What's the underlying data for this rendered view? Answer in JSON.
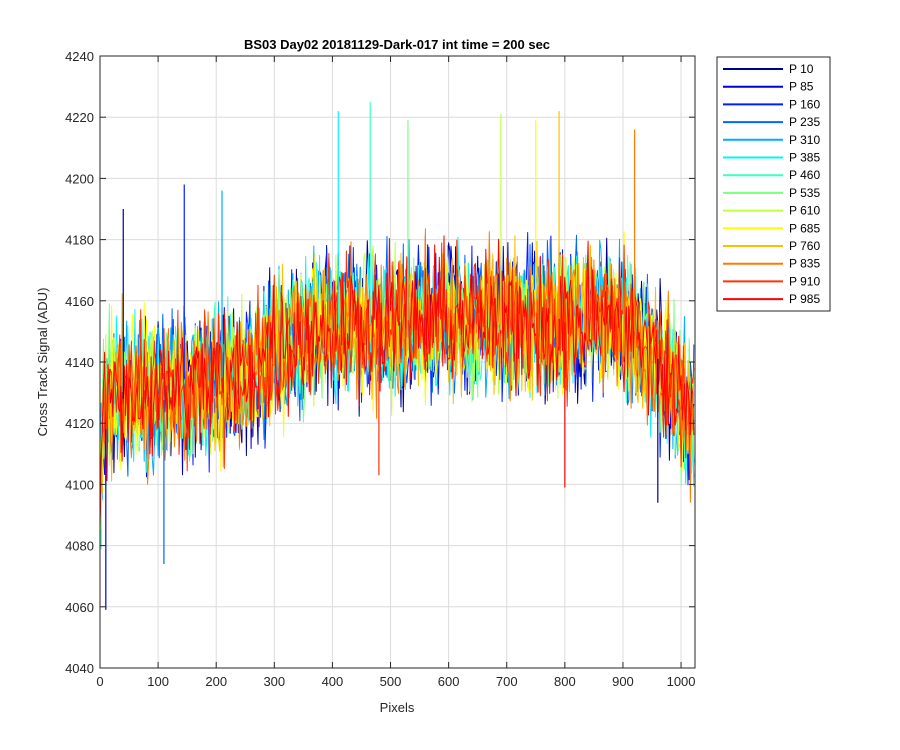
{
  "chart_data": {
    "type": "line",
    "title": "BS03 Day02 20181129-Dark-017 int time = 200 sec",
    "xlabel": "Pixels",
    "ylabel": "Cross Track Signal (ADU)",
    "xlim": [
      0,
      1024
    ],
    "ylim": [
      4040,
      4240
    ],
    "xticks": [
      0,
      100,
      200,
      300,
      400,
      500,
      600,
      700,
      800,
      900,
      1000
    ],
    "yticks": [
      4040,
      4060,
      4080,
      4100,
      4120,
      4140,
      4160,
      4180,
      4200,
      4220,
      4240
    ],
    "grid": true,
    "legend_position": "outside-top-right",
    "x": [
      0,
      16,
      32,
      48,
      64,
      80,
      96,
      112,
      128,
      144,
      160,
      176,
      192,
      208,
      224,
      240,
      256,
      272,
      288,
      304,
      320,
      336,
      352,
      368,
      384,
      400,
      416,
      432,
      448,
      464,
      480,
      496,
      512,
      528,
      544,
      560,
      576,
      592,
      608,
      624,
      640,
      656,
      672,
      688,
      704,
      720,
      736,
      752,
      768,
      784,
      800,
      816,
      832,
      848,
      864,
      880,
      896,
      912,
      928,
      944,
      960,
      976,
      992,
      1008,
      1023
    ],
    "series": [
      {
        "name": "P 10",
        "color": "#00008f",
        "values": [
          4100,
          4128,
          4122,
          4134,
          4126,
          4131,
          4124,
          4137,
          4129,
          4132,
          4128,
          4135,
          4127,
          4138,
          4131,
          4140,
          4133,
          4142,
          4139,
          4148,
          4143,
          4150,
          4146,
          4153,
          4149,
          4156,
          4151,
          4154,
          4148,
          4157,
          4152,
          4155,
          4150,
          4158,
          4153,
          4156,
          4151,
          4159,
          4154,
          4157,
          4152,
          4155,
          4150,
          4158,
          4153,
          4156,
          4151,
          4159,
          4154,
          4157,
          4152,
          4155,
          4150,
          4158,
          4153,
          4156,
          4151,
          4154,
          4149,
          4146,
          4141,
          4138,
          4132,
          4127,
          4122
        ]
      },
      {
        "name": "P 85",
        "color": "#0000d6",
        "values": [
          4108,
          4124,
          4130,
          4127,
          4133,
          4125,
          4135,
          4128,
          4131,
          4126,
          4136,
          4129,
          4134,
          4131,
          4137,
          4132,
          4139,
          4136,
          4144,
          4141,
          4149,
          4144,
          4152,
          4147,
          4155,
          4150,
          4153,
          4149,
          4156,
          4151,
          4154,
          4148,
          4157,
          4152,
          4155,
          4150,
          4158,
          4153,
          4156,
          4151,
          4154,
          4149,
          4157,
          4152,
          4155,
          4150,
          4158,
          4153,
          4156,
          4151,
          4154,
          4149,
          4157,
          4152,
          4155,
          4150,
          4153,
          4148,
          4151,
          4143,
          4139,
          4134,
          4129,
          4124,
          4119
        ]
      },
      {
        "name": "P 160",
        "color": "#001fff",
        "values": [
          4104,
          4131,
          4125,
          4132,
          4128,
          4134,
          4126,
          4133,
          4130,
          4135,
          4127,
          4134,
          4131,
          4136,
          4129,
          4138,
          4135,
          4141,
          4137,
          4146,
          4142,
          4151,
          4145,
          4154,
          4148,
          4152,
          4155,
          4150,
          4153,
          4149,
          4156,
          4151,
          4154,
          4149,
          4157,
          4152,
          4155,
          4150,
          4153,
          4148,
          4156,
          4151,
          4154,
          4149,
          4157,
          4152,
          4155,
          4150,
          4153,
          4148,
          4156,
          4151,
          4154,
          4149,
          4157,
          4152,
          4155,
          4150,
          4147,
          4145,
          4137,
          4136,
          4130,
          4125,
          4118
        ]
      },
      {
        "name": "P 235",
        "color": "#0066ff",
        "values": [
          4110,
          4126,
          4133,
          4126,
          4131,
          4129,
          4132,
          4127,
          4134,
          4130,
          4133,
          4128,
          4136,
          4130,
          4134,
          4137,
          4138,
          4140,
          4142,
          4145,
          4147,
          4149,
          4148,
          4151,
          4152,
          4155,
          4150,
          4156,
          4152,
          4154,
          4150,
          4157,
          4153,
          4155,
          4149,
          4156,
          4152,
          4154,
          4150,
          4157,
          4153,
          4155,
          4149,
          4156,
          4152,
          4154,
          4150,
          4157,
          4153,
          4155,
          4149,
          4156,
          4152,
          4154,
          4150,
          4157,
          4153,
          4151,
          4148,
          4142,
          4140,
          4133,
          4131,
          4123,
          4121
        ]
      },
      {
        "name": "P 310",
        "color": "#00adff",
        "values": [
          4102,
          4129,
          4127,
          4135,
          4129,
          4132,
          4127,
          4136,
          4128,
          4133,
          4129,
          4137,
          4130,
          4135,
          4133,
          4139,
          4134,
          4143,
          4140,
          4147,
          4144,
          4152,
          4147,
          4150,
          4154,
          4151,
          4156,
          4152,
          4155,
          4150,
          4157,
          4151,
          4154,
          4151,
          4156,
          4150,
          4155,
          4152,
          4157,
          4151,
          4154,
          4150,
          4156,
          4151,
          4155,
          4152,
          4157,
          4151,
          4154,
          4150,
          4156,
          4151,
          4155,
          4152,
          4157,
          4151,
          4154,
          4149,
          4150,
          4141,
          4138,
          4135,
          4128,
          4126,
          4117
        ]
      },
      {
        "name": "P 385",
        "color": "#00f4ff",
        "values": [
          4106,
          4127,
          4131,
          4128,
          4134,
          4128,
          4136,
          4126,
          4132,
          4131,
          4134,
          4127,
          4135,
          4132,
          4136,
          4130,
          4140,
          4137,
          4145,
          4143,
          4148,
          4146,
          4153,
          4149,
          4151,
          4153,
          4152,
          4157,
          4150,
          4156,
          4153,
          4154,
          4149,
          4155,
          4152,
          4157,
          4150,
          4156,
          4153,
          4154,
          4149,
          4155,
          4152,
          4157,
          4150,
          4156,
          4153,
          4154,
          4149,
          4155,
          4152,
          4157,
          4150,
          4156,
          4153,
          4154,
          4149,
          4152,
          4146,
          4144,
          4136,
          4137,
          4129,
          4124,
          4120
        ]
      },
      {
        "name": "P 460",
        "color": "#3dffc2",
        "values": [
          4099,
          4125,
          4134,
          4129,
          4130,
          4130,
          4133,
          4129,
          4137,
          4128,
          4131,
          4132,
          4135,
          4129,
          4138,
          4133,
          4137,
          4139,
          4143,
          4146,
          4145,
          4150,
          4150,
          4152,
          4153,
          4154,
          4151,
          4153,
          4154,
          4152,
          4155,
          4153,
          4151,
          4156,
          4154,
          4152,
          4153,
          4155,
          4152,
          4154,
          4150,
          4156,
          4154,
          4152,
          4153,
          4155,
          4152,
          4154,
          4150,
          4156,
          4154,
          4152,
          4153,
          4155,
          4152,
          4154,
          4150,
          4153,
          4149,
          4140,
          4141,
          4132,
          4132,
          4122,
          4123
        ]
      },
      {
        "name": "P 535",
        "color": "#7bff83",
        "values": [
          4112,
          4130,
          4126,
          4133,
          4127,
          4133,
          4125,
          4134,
          4131,
          4134,
          4128,
          4133,
          4128,
          4137,
          4130,
          4139,
          4132,
          4144,
          4138,
          4148,
          4141,
          4153,
          4144,
          4153,
          4150,
          4153,
          4152,
          4156,
          4149,
          4155,
          4151,
          4156,
          4152,
          4154,
          4151,
          4155,
          4153,
          4156,
          4149,
          4155,
          4151,
          4156,
          4152,
          4154,
          4151,
          4155,
          4153,
          4156,
          4149,
          4155,
          4151,
          4156,
          4152,
          4154,
          4151,
          4155,
          4153,
          4150,
          4147,
          4143,
          4139,
          4134,
          4130,
          4127,
          4118
        ]
      },
      {
        "name": "P 610",
        "color": "#c2ff3d",
        "values": [
          4105,
          4128,
          4129,
          4130,
          4132,
          4127,
          4134,
          4130,
          4130,
          4133,
          4130,
          4136,
          4129,
          4133,
          4135,
          4138,
          4136,
          4140,
          4141,
          4144,
          4146,
          4148,
          4149,
          4150,
          4151,
          4152,
          4154,
          4150,
          4155,
          4150,
          4154,
          4152,
          4155,
          4150,
          4153,
          4154,
          4151,
          4153,
          4155,
          4150,
          4154,
          4152,
          4155,
          4150,
          4153,
          4154,
          4151,
          4153,
          4155,
          4150,
          4154,
          4152,
          4155,
          4150,
          4153,
          4154,
          4151,
          4151,
          4148,
          4142,
          4138,
          4136,
          4128,
          4125,
          4122
        ]
      },
      {
        "name": "P 685",
        "color": "#ffff00",
        "values": [
          4103,
          4132,
          4124,
          4131,
          4133,
          4130,
          4131,
          4128,
          4133,
          4129,
          4135,
          4130,
          4137,
          4130,
          4133,
          4137,
          4134,
          4141,
          4140,
          4145,
          4143,
          4151,
          4146,
          4152,
          4149,
          4154,
          4149,
          4155,
          4153,
          4153,
          4148,
          4157,
          4150,
          4155,
          4152,
          4154,
          4150,
          4157,
          4153,
          4155,
          4149,
          4156,
          4150,
          4155,
          4152,
          4154,
          4150,
          4157,
          4153,
          4155,
          4149,
          4156,
          4150,
          4155,
          4152,
          4154,
          4150,
          4152,
          4146,
          4144,
          4137,
          4134,
          4131,
          4124,
          4119
        ]
      },
      {
        "name": "P 760",
        "color": "#ffbd00",
        "values": [
          4109,
          4126,
          4132,
          4128,
          4129,
          4132,
          4126,
          4135,
          4129,
          4135,
          4126,
          4134,
          4132,
          4135,
          4131,
          4136,
          4138,
          4142,
          4137,
          4147,
          4145,
          4149,
          4147,
          4154,
          4151,
          4152,
          4153,
          4152,
          4151,
          4157,
          4152,
          4155,
          4151,
          4156,
          4150,
          4155,
          4152,
          4157,
          4151,
          4154,
          4150,
          4156,
          4151,
          4155,
          4152,
          4157,
          4151,
          4154,
          4150,
          4156,
          4151,
          4155,
          4152,
          4157,
          4151,
          4154,
          4150,
          4154,
          4147,
          4141,
          4140,
          4133,
          4129,
          4126,
          4121
        ]
      },
      {
        "name": "P 835",
        "color": "#ff7a00",
        "values": [
          4101,
          4129,
          4128,
          4132,
          4131,
          4128,
          4135,
          4127,
          4135,
          4131,
          4132,
          4129,
          4135,
          4132,
          4137,
          4134,
          4135,
          4143,
          4139,
          4146,
          4143,
          4150,
          4148,
          4151,
          4153,
          4154,
          4150,
          4155,
          4152,
          4154,
          4151,
          4156,
          4153,
          4154,
          4150,
          4157,
          4151,
          4155,
          4152,
          4156,
          4150,
          4155,
          4153,
          4154,
          4150,
          4157,
          4151,
          4155,
          4152,
          4156,
          4150,
          4155,
          4153,
          4154,
          4150,
          4157,
          4151,
          4151,
          4149,
          4143,
          4137,
          4137,
          4130,
          4123,
          4120
        ]
      },
      {
        "name": "P 910",
        "color": "#ff3300",
        "values": [
          4107,
          4127,
          4130,
          4129,
          4135,
          4126,
          4132,
          4131,
          4132,
          4127,
          4136,
          4131,
          4133,
          4134,
          4136,
          4135,
          4139,
          4138,
          4144,
          4142,
          4148,
          4147,
          4151,
          4148,
          4152,
          4151,
          4155,
          4151,
          4154,
          4153,
          4156,
          4149,
          4156,
          4153,
          4155,
          4151,
          4154,
          4153,
          4156,
          4149,
          4156,
          4153,
          4155,
          4151,
          4154,
          4153,
          4156,
          4149,
          4156,
          4153,
          4155,
          4151,
          4154,
          4153,
          4156,
          4149,
          4156,
          4152,
          4145,
          4145,
          4139,
          4135,
          4131,
          4125,
          4121
        ]
      },
      {
        "name": "P 985",
        "color": "#ff0000",
        "values": [
          4104,
          4130,
          4127,
          4131,
          4130,
          4131,
          4129,
          4132,
          4131,
          4131,
          4131,
          4133,
          4132,
          4135,
          4134,
          4137,
          4137,
          4140,
          4142,
          4146,
          4146,
          4149,
          4150,
          4151,
          4151,
          4153,
          4152,
          4153,
          4153,
          4154,
          4153,
          4154,
          4153,
          4155,
          4153,
          4154,
          4153,
          4154,
          4153,
          4155,
          4153,
          4154,
          4153,
          4154,
          4153,
          4155,
          4153,
          4154,
          4153,
          4154,
          4153,
          4155,
          4153,
          4154,
          4153,
          4154,
          4152,
          4152,
          4148,
          4143,
          4139,
          4135,
          4130,
          4125,
          4121
        ]
      }
    ],
    "spikes": [
      {
        "x": 40,
        "y": 4190
      },
      {
        "x": 10,
        "y": 4059
      },
      {
        "x": 145,
        "y": 4198
      },
      {
        "x": 110,
        "y": 4074
      },
      {
        "x": 210,
        "y": 4196
      },
      {
        "x": 410,
        "y": 4222
      },
      {
        "x": 465,
        "y": 4225
      },
      {
        "x": 530,
        "y": 4219
      },
      {
        "x": 690,
        "y": 4221
      },
      {
        "x": 750,
        "y": 4219
      },
      {
        "x": 790,
        "y": 4222
      },
      {
        "x": 920,
        "y": 4216
      },
      {
        "x": 480,
        "y": 4103
      },
      {
        "x": 800,
        "y": 4099
      },
      {
        "x": 960,
        "y": 4094
      }
    ]
  }
}
